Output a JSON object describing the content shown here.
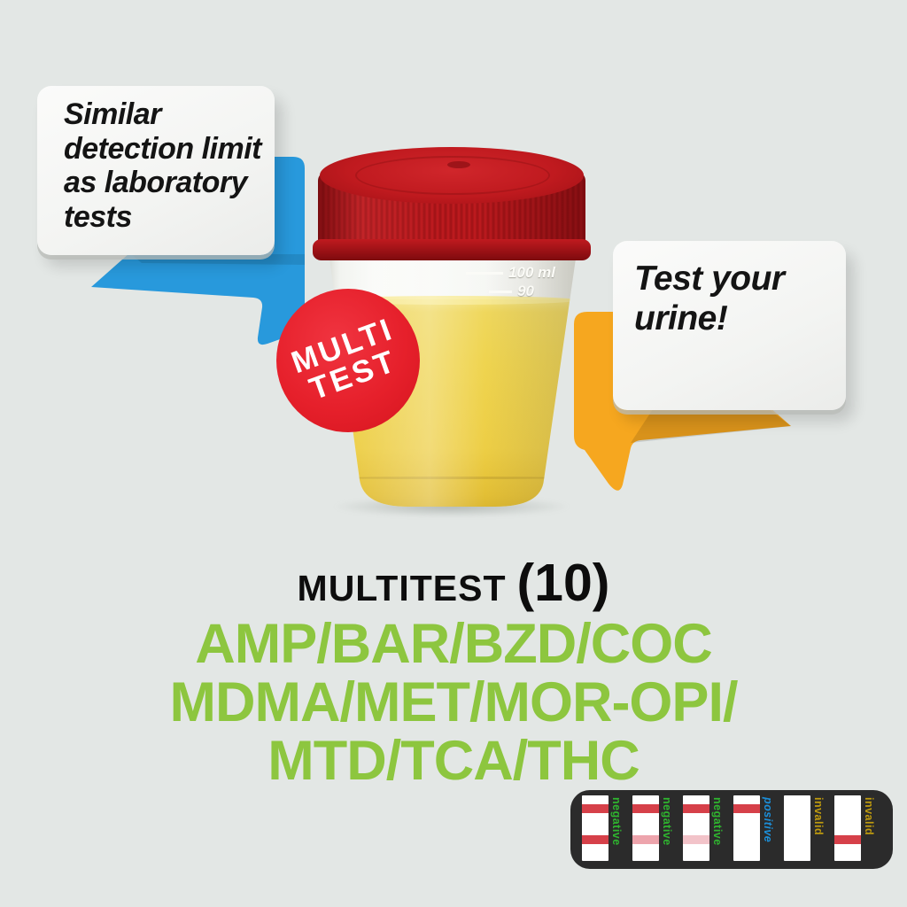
{
  "page": {
    "background_color": "#e3e7e5"
  },
  "left_bubble": {
    "lines": [
      "Similar",
      "detection limit",
      "as laboratory",
      "tests"
    ],
    "arrow_color": "#2899dc"
  },
  "right_bubble": {
    "lines": [
      "Test your",
      "urine!"
    ],
    "arrow_color": "#f6a71f"
  },
  "badge": {
    "lines": [
      "MULTI",
      "TEST"
    ],
    "bg_color": "#e6202b",
    "text_color": "#ffffff"
  },
  "cup": {
    "lid_color": "#c01a1f",
    "urine_color": "#efd44f",
    "graduations": [
      {
        "label": "100 ml"
      },
      {
        "label": "90"
      }
    ]
  },
  "heading": {
    "title": "MULTITEST",
    "count": "(10)"
  },
  "substances": {
    "color": "#8dc63f",
    "lines": [
      "AMP/BAR/BZD/COC",
      "MDMA/MET/MOR-OPI/",
      "MTD/TCA/THC"
    ]
  },
  "strip_panel": {
    "bg_color": "#2b2b2b",
    "line_colors": {
      "strong": "#d64049",
      "faint": "#eda4ac",
      "fainter": "#f2c3c9",
      "none": "transparent"
    },
    "strips": [
      {
        "label": "negative",
        "label_color": "#2fb52f",
        "italic": false,
        "control_line": "strong",
        "test_line": "strong"
      },
      {
        "label": "negative",
        "label_color": "#2fb52f",
        "italic": false,
        "control_line": "strong",
        "test_line": "faint"
      },
      {
        "label": "negative",
        "label_color": "#2fb52f",
        "italic": false,
        "control_line": "strong",
        "test_line": "fainter"
      },
      {
        "label": "positive",
        "label_color": "#1c8fd9",
        "italic": true,
        "control_line": "strong",
        "test_line": "none"
      },
      {
        "label": "invalid",
        "label_color": "#bf9b0e",
        "italic": false,
        "control_line": "none",
        "test_line": "none"
      },
      {
        "label": "invalid",
        "label_color": "#bf9b0e",
        "italic": false,
        "control_line": "none",
        "test_line": "strong"
      }
    ]
  }
}
